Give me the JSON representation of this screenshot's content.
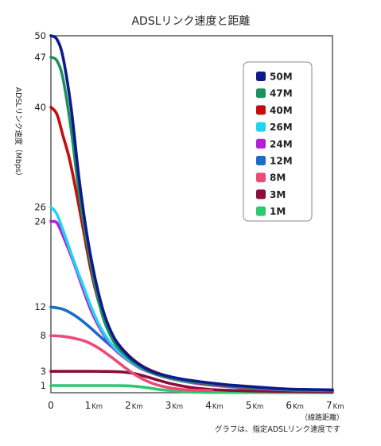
{
  "chart_data": {
    "type": "line",
    "title": "ADSLリンク速度と距離",
    "ylabel": "ADSLリンク速度（Mbps）",
    "xlabel_note": "（線路距離）",
    "footnote": "グラフは、指定ADSLリンク速度です",
    "xlim": [
      0,
      7
    ],
    "ylim": [
      0,
      50
    ],
    "x_ticks": [
      {
        "value": 0,
        "label": "0",
        "unit": ""
      },
      {
        "value": 1,
        "label": "1",
        "unit": "Km"
      },
      {
        "value": 2,
        "label": "2",
        "unit": "Km"
      },
      {
        "value": 3,
        "label": "3",
        "unit": "Km"
      },
      {
        "value": 4,
        "label": "4",
        "unit": "Km"
      },
      {
        "value": 5,
        "label": "5",
        "unit": "Km"
      },
      {
        "value": 6,
        "label": "6",
        "unit": "Km"
      },
      {
        "value": 7,
        "label": "7",
        "unit": "Km"
      }
    ],
    "y_ticks": [
      1,
      3,
      8,
      12,
      24,
      26,
      40,
      47,
      50
    ],
    "legend_position": "top-right",
    "series": [
      {
        "name": "50M",
        "color": "#0d1a8c",
        "points": [
          [
            0,
            50
          ],
          [
            0.15,
            49.5
          ],
          [
            0.3,
            47
          ],
          [
            0.5,
            40
          ],
          [
            0.7,
            30
          ],
          [
            0.9,
            22
          ],
          [
            1.1,
            16
          ],
          [
            1.3,
            11.5
          ],
          [
            1.5,
            8.5
          ],
          [
            1.7,
            6.6
          ],
          [
            2.0,
            4.8
          ],
          [
            2.3,
            3.6
          ],
          [
            2.6,
            2.8
          ],
          [
            3.0,
            2.2
          ],
          [
            3.5,
            1.7
          ],
          [
            4.0,
            1.35
          ],
          [
            4.5,
            1.05
          ],
          [
            5.0,
            0.85
          ],
          [
            5.5,
            0.65
          ],
          [
            6.0,
            0.5
          ],
          [
            6.5,
            0.45
          ],
          [
            7.0,
            0.4
          ]
        ]
      },
      {
        "name": "47M",
        "color": "#1e9060",
        "points": [
          [
            0,
            47
          ],
          [
            0.15,
            46.5
          ],
          [
            0.3,
            44
          ],
          [
            0.5,
            37
          ],
          [
            0.7,
            28
          ],
          [
            0.9,
            21
          ],
          [
            1.1,
            15
          ],
          [
            1.3,
            10.5
          ],
          [
            1.5,
            7.8
          ],
          [
            1.7,
            6.1
          ],
          [
            2.0,
            4.5
          ],
          [
            2.3,
            3.4
          ],
          [
            2.6,
            2.6
          ],
          [
            3.0,
            2.0
          ],
          [
            3.5,
            1.55
          ],
          [
            4.0,
            1.25
          ],
          [
            4.5,
            0.95
          ],
          [
            5.0,
            0.75
          ],
          [
            5.5,
            0.6
          ],
          [
            6.0,
            0.45
          ],
          [
            6.5,
            0.4
          ],
          [
            7.0,
            0.35
          ]
        ]
      },
      {
        "name": "40M",
        "color": "#c40e0e",
        "points": [
          [
            0,
            40
          ],
          [
            0.15,
            39
          ],
          [
            0.3,
            36
          ],
          [
            0.45,
            33
          ],
          [
            0.6,
            29
          ],
          [
            0.8,
            23
          ],
          [
            1.0,
            17
          ],
          [
            1.2,
            12.5
          ],
          [
            1.4,
            9.5
          ],
          [
            1.6,
            7.4
          ],
          [
            1.9,
            5.4
          ],
          [
            2.2,
            4.0
          ],
          [
            2.5,
            3.1
          ],
          [
            3.0,
            2.1
          ],
          [
            3.5,
            1.5
          ],
          [
            4.0,
            1.15
          ],
          [
            4.5,
            0.9
          ],
          [
            5.0,
            0.7
          ],
          [
            5.5,
            0.55
          ],
          [
            6.0,
            0.45
          ],
          [
            7.0,
            0.3
          ]
        ]
      },
      {
        "name": "26M",
        "color": "#21d3f3",
        "points": [
          [
            0,
            26
          ],
          [
            0.15,
            25
          ],
          [
            0.35,
            22
          ],
          [
            0.6,
            18
          ],
          [
            0.8,
            15
          ],
          [
            1.0,
            12
          ],
          [
            1.2,
            9.5
          ],
          [
            1.4,
            7.6
          ],
          [
            1.6,
            6.2
          ],
          [
            1.9,
            4.7
          ],
          [
            2.2,
            3.6
          ],
          [
            2.6,
            2.7
          ],
          [
            3.0,
            2.0
          ],
          [
            3.5,
            1.45
          ],
          [
            4.0,
            1.1
          ],
          [
            4.5,
            0.85
          ],
          [
            5.0,
            0.65
          ],
          [
            5.5,
            0.5
          ],
          [
            6.0,
            0.4
          ],
          [
            7.0,
            0.3
          ]
        ]
      },
      {
        "name": "24M",
        "color": "#b21fd6",
        "points": [
          [
            0,
            24
          ],
          [
            0.15,
            23.8
          ],
          [
            0.3,
            22
          ],
          [
            0.55,
            18.5
          ],
          [
            0.8,
            14.5
          ],
          [
            1.0,
            11.5
          ],
          [
            1.2,
            9.2
          ],
          [
            1.4,
            7.4
          ],
          [
            1.6,
            6.0
          ],
          [
            1.9,
            4.6
          ],
          [
            2.2,
            3.5
          ],
          [
            2.6,
            2.6
          ],
          [
            3.0,
            1.95
          ],
          [
            3.5,
            1.4
          ],
          [
            4.0,
            1.05
          ],
          [
            4.5,
            0.8
          ],
          [
            5.0,
            0.6
          ],
          [
            5.5,
            0.48
          ],
          [
            6.0,
            0.38
          ],
          [
            7.0,
            0.28
          ]
        ]
      },
      {
        "name": "12M",
        "color": "#1a6cc8",
        "points": [
          [
            0,
            12
          ],
          [
            0.3,
            11.7
          ],
          [
            0.6,
            10.8
          ],
          [
            0.9,
            9.5
          ],
          [
            1.2,
            8
          ],
          [
            1.5,
            6.5
          ],
          [
            1.8,
            5.1
          ],
          [
            2.1,
            4.0
          ],
          [
            2.5,
            3.0
          ],
          [
            3.0,
            2.2
          ],
          [
            3.5,
            1.6
          ],
          [
            4.0,
            1.2
          ],
          [
            4.5,
            0.9
          ],
          [
            5.0,
            0.7
          ],
          [
            5.5,
            0.55
          ],
          [
            6.0,
            0.45
          ],
          [
            7.0,
            0.32
          ]
        ]
      },
      {
        "name": "8M",
        "color": "#ea4b78",
        "points": [
          [
            0,
            8
          ],
          [
            0.3,
            7.9
          ],
          [
            0.6,
            7.6
          ],
          [
            0.9,
            7.1
          ],
          [
            1.2,
            6.2
          ],
          [
            1.5,
            5.0
          ],
          [
            1.8,
            3.7
          ],
          [
            2.1,
            2.5
          ],
          [
            2.4,
            1.6
          ],
          [
            2.7,
            1.0
          ],
          [
            3.0,
            0.65
          ],
          [
            3.3,
            0.45
          ],
          [
            3.6,
            0.35
          ],
          [
            4.0,
            0.3
          ]
        ]
      },
      {
        "name": "3M",
        "color": "#8a0d3c",
        "points": [
          [
            0,
            3
          ],
          [
            0.5,
            3
          ],
          [
            1.0,
            3
          ],
          [
            1.5,
            2.97
          ],
          [
            1.8,
            2.9
          ],
          [
            2.1,
            2.65
          ],
          [
            2.4,
            2.2
          ],
          [
            2.7,
            1.7
          ],
          [
            3.0,
            1.25
          ],
          [
            3.3,
            0.9
          ],
          [
            3.6,
            0.65
          ],
          [
            4.0,
            0.45
          ],
          [
            4.5,
            0.32
          ],
          [
            5.0,
            0.25
          ],
          [
            5.5,
            0.2
          ],
          [
            6.0,
            0.17
          ],
          [
            7.0,
            0.13
          ]
        ]
      },
      {
        "name": "1M",
        "color": "#2ec86e",
        "points": [
          [
            0,
            1
          ],
          [
            0.5,
            1
          ],
          [
            1.0,
            1
          ],
          [
            1.5,
            1
          ],
          [
            1.8,
            0.98
          ],
          [
            2.1,
            0.9
          ],
          [
            2.4,
            0.7
          ],
          [
            2.7,
            0.45
          ],
          [
            3.0,
            0.28
          ],
          [
            3.3,
            0.15
          ],
          [
            3.6,
            0.08
          ],
          [
            4.0,
            0.05
          ],
          [
            5.0,
            0.03
          ],
          [
            6.0,
            0.02
          ],
          [
            7.0,
            0.01
          ]
        ]
      }
    ]
  }
}
